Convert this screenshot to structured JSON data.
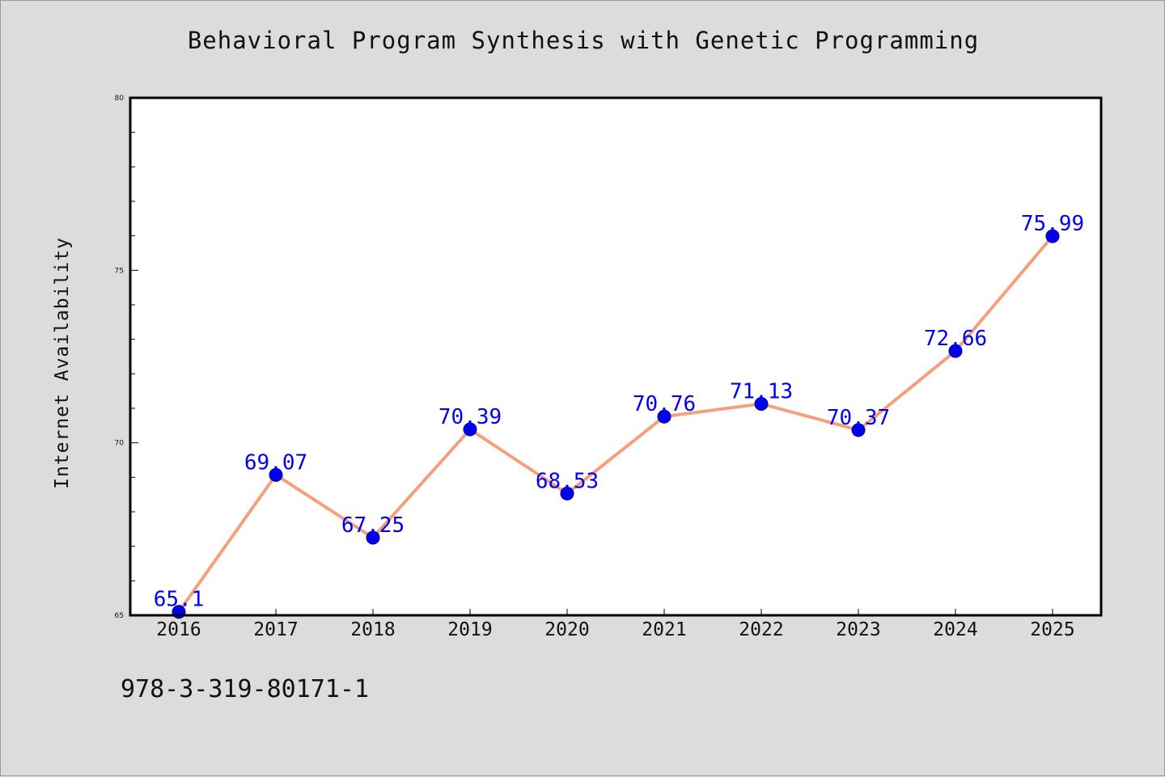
{
  "chart_data": {
    "type": "line",
    "title": "Behavioral Program Synthesis with Genetic Programming",
    "xlabel": "",
    "ylabel": "Internet Availability",
    "categories": [
      "2016",
      "2017",
      "2018",
      "2019",
      "2020",
      "2021",
      "2022",
      "2023",
      "2024",
      "2025"
    ],
    "series": [
      {
        "values": [
          65.1,
          69.07,
          67.25,
          70.39,
          68.53,
          70.76,
          71.13,
          70.37,
          72.66,
          75.99
        ],
        "labels": [
          "65.1",
          "69.07",
          "67.25",
          "70.39",
          "68.53",
          "70.76",
          "71.13",
          "70.37",
          "72.66",
          "75.99"
        ]
      }
    ],
    "ylim": [
      65,
      80
    ],
    "yticks": [
      65,
      70,
      75,
      80
    ],
    "ytick_labels": [
      "65",
      "70",
      "75",
      "80"
    ],
    "grid": false,
    "line_color": "#f4a07c",
    "marker_color": "#0000ee",
    "label_color": "#0000ee",
    "background_color": "#dcdcdc",
    "plot_background_color": "#ffffff"
  },
  "footnote": "978-3-319-80171-1"
}
